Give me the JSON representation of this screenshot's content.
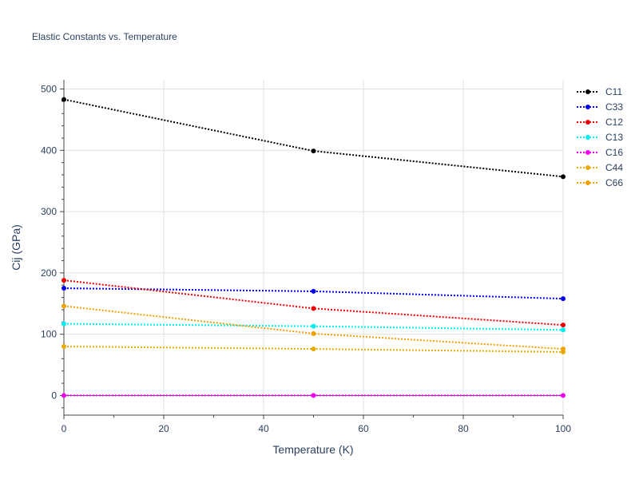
{
  "chart_data": {
    "type": "line",
    "title": "Elastic Constants vs. Temperature",
    "xlabel": "Temperature (K)",
    "ylabel": "Cij (GPa)",
    "xlim": [
      0,
      100
    ],
    "ylim": [
      -32,
      515
    ],
    "xticks": [
      0,
      20,
      40,
      60,
      80,
      100
    ],
    "yticks": [
      0,
      100,
      200,
      300,
      400,
      500
    ],
    "grid": true,
    "legend_position": "right",
    "x": [
      0,
      50,
      100
    ],
    "series": [
      {
        "name": "C11",
        "color": "#000000",
        "values": [
          483,
          399,
          357
        ]
      },
      {
        "name": "C33",
        "color": "#0000ee",
        "values": [
          175,
          170,
          158
        ]
      },
      {
        "name": "C12",
        "color": "#ee0000",
        "values": [
          188,
          142,
          115
        ]
      },
      {
        "name": "C13",
        "color": "#00eeee",
        "values": [
          117,
          113,
          107
        ]
      },
      {
        "name": "C16",
        "color": "#ee00ee",
        "values": [
          0,
          0,
          0
        ]
      },
      {
        "name": "C44",
        "color": "#e6ac00",
        "values": [
          80,
          76,
          71
        ]
      },
      {
        "name": "C66",
        "color": "#f0a000",
        "values": [
          146,
          101,
          76
        ]
      }
    ]
  }
}
